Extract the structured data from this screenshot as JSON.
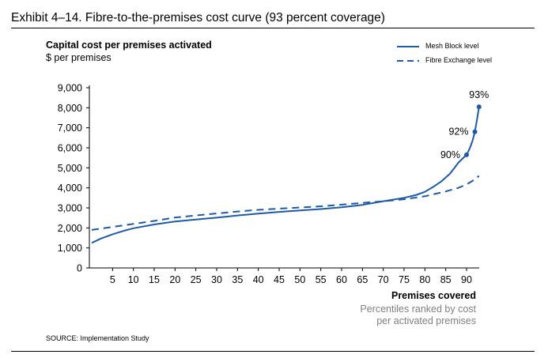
{
  "exhibit_title": "Exhibit 4–14. Fibre-to-the-premises cost curve (93 percent coverage)",
  "source": "SOURCE: Implementation Study",
  "colors": {
    "series": "#1f5aa6",
    "text": "#000000",
    "subtext": "#808080"
  },
  "chart_data": {
    "type": "line",
    "title": "",
    "ylabel": "Capital cost per premises activated",
    "ylabel_unit": "$ per premises",
    "xlabel": "Premises covered",
    "xlabel_sub": [
      "Percentiles ranked by cost",
      "per activated premises"
    ],
    "xlim": [
      0,
      95
    ],
    "ylim": [
      0,
      9000
    ],
    "xticks": [
      5,
      10,
      15,
      20,
      25,
      30,
      35,
      40,
      45,
      50,
      55,
      60,
      65,
      70,
      75,
      80,
      85,
      90
    ],
    "xtick_labels": [
      "5",
      "10",
      "15",
      "20",
      "25",
      "30",
      "35",
      "40",
      "45",
      "50",
      "55",
      "60",
      "65",
      "70",
      "75",
      "80",
      "85",
      "90"
    ],
    "yticks": [
      0,
      1000,
      2000,
      3000,
      4000,
      5000,
      6000,
      7000,
      8000,
      9000
    ],
    "ytick_labels": [
      "0",
      "1,000",
      "2,000",
      "3,000",
      "4,000",
      "5,000",
      "6,000",
      "7,000",
      "8,000",
      "9,000"
    ],
    "legend_position": "top-right",
    "series": [
      {
        "name": "Mesh Block level",
        "style": "solid",
        "x": [
          0,
          2,
          5,
          8,
          10,
          15,
          20,
          25,
          30,
          35,
          40,
          45,
          50,
          55,
          60,
          65,
          70,
          75,
          78,
          80,
          82,
          84,
          86,
          87,
          88,
          89,
          90,
          90.5,
          91,
          91.5,
          92,
          92.5,
          93
        ],
        "y": [
          1250,
          1450,
          1680,
          1870,
          1980,
          2170,
          2320,
          2420,
          2510,
          2620,
          2710,
          2800,
          2870,
          2940,
          3030,
          3150,
          3330,
          3500,
          3650,
          3800,
          4050,
          4330,
          4700,
          4970,
          5250,
          5450,
          5650,
          5850,
          6100,
          6400,
          6800,
          7400,
          8050
        ]
      },
      {
        "name": "Fibre Exchange level",
        "style": "dashed",
        "x": [
          0,
          5,
          10,
          15,
          20,
          25,
          30,
          35,
          40,
          45,
          50,
          55,
          60,
          65,
          70,
          75,
          80,
          85,
          88,
          90,
          92,
          93
        ],
        "y": [
          1900,
          2050,
          2200,
          2350,
          2520,
          2620,
          2720,
          2820,
          2900,
          2960,
          3020,
          3080,
          3160,
          3250,
          3330,
          3430,
          3580,
          3820,
          4000,
          4170,
          4420,
          4600
        ]
      }
    ],
    "annotations": [
      {
        "x": 90,
        "y": 5650,
        "label": "90%"
      },
      {
        "x": 92,
        "y": 6800,
        "label": "92%"
      },
      {
        "x": 93,
        "y": 8050,
        "label": "93%"
      }
    ]
  }
}
